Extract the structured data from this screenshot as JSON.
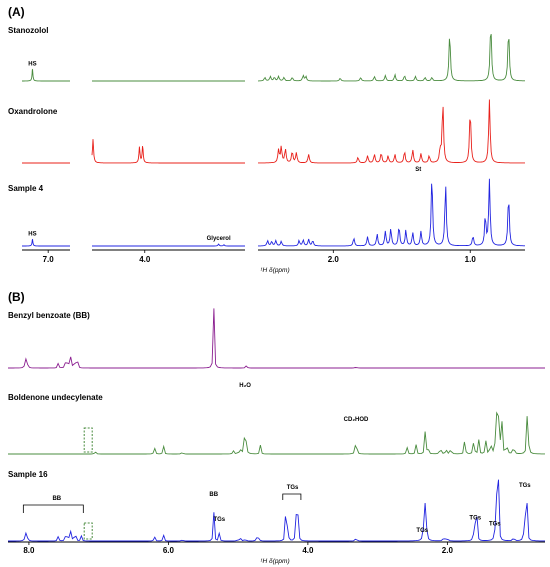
{
  "chart_data": [
    {
      "type": "line",
      "panel_label": "(A)",
      "x_label": "¹H δ(ppm)",
      "x_axis": "reversed",
      "x_ticks": [
        "7.0",
        "4.0",
        "2.0",
        "1.0"
      ],
      "x_segments": [
        [
          7.3,
          6.75
        ],
        [
          4.5,
          3.05
        ],
        [
          2.55,
          0.6
        ]
      ],
      "series": [
        {
          "name": "Stanozolol",
          "color": "#4a8c3f",
          "peaks": [
            [
              7.18,
              13
            ],
            [
              2.5,
              4
            ],
            [
              2.46,
              5
            ],
            [
              2.43,
              4
            ],
            [
              2.4,
              5
            ],
            [
              2.36,
              4
            ],
            [
              2.3,
              4
            ],
            [
              2.22,
              6
            ],
            [
              2.2,
              5
            ],
            [
              1.95,
              3
            ],
            [
              1.8,
              4
            ],
            [
              1.7,
              5
            ],
            [
              1.62,
              6
            ],
            [
              1.55,
              7
            ],
            [
              1.48,
              6
            ],
            [
              1.4,
              5
            ],
            [
              1.33,
              4
            ],
            [
              1.28,
              4
            ],
            [
              1.15,
              55
            ],
            [
              0.85,
              65
            ],
            [
              0.72,
              58
            ]
          ]
        },
        {
          "name": "Oxandrolone",
          "color": "#e8201a",
          "peaks": [
            [
              4.52,
              30
            ],
            [
              4.49,
              32
            ],
            [
              4.05,
              22
            ],
            [
              4.02,
              24
            ],
            [
              2.4,
              18
            ],
            [
              2.38,
              22
            ],
            [
              2.35,
              19
            ],
            [
              2.3,
              16
            ],
            [
              2.27,
              14
            ],
            [
              2.18,
              12
            ],
            [
              1.82,
              8
            ],
            [
              1.75,
              10
            ],
            [
              1.7,
              12
            ],
            [
              1.65,
              14
            ],
            [
              1.6,
              10
            ],
            [
              1.55,
              12
            ],
            [
              1.48,
              16
            ],
            [
              1.42,
              18
            ],
            [
              1.36,
              13
            ],
            [
              1.3,
              10
            ],
            [
              1.22,
              18
            ],
            [
              1.2,
              85
            ],
            [
              1.0,
              75
            ],
            [
              0.86,
              88
            ]
          ]
        },
        {
          "name": "Sample 4",
          "color": "#2124e0",
          "peaks": [
            [
              7.18,
              10
            ],
            [
              3.3,
              3
            ],
            [
              3.25,
              2
            ],
            [
              2.48,
              8
            ],
            [
              2.45,
              7
            ],
            [
              2.42,
              8
            ],
            [
              2.38,
              7
            ],
            [
              2.25,
              8
            ],
            [
              2.22,
              9
            ],
            [
              2.18,
              10
            ],
            [
              2.15,
              8
            ],
            [
              1.85,
              12
            ],
            [
              1.75,
              14
            ],
            [
              1.68,
              18
            ],
            [
              1.62,
              22
            ],
            [
              1.58,
              26
            ],
            [
              1.52,
              30
            ],
            [
              1.47,
              24
            ],
            [
              1.42,
              20
            ],
            [
              1.36,
              22
            ],
            [
              1.28,
              110
            ],
            [
              1.18,
              95
            ],
            [
              0.98,
              15
            ],
            [
              0.89,
              45
            ],
            [
              0.86,
              100
            ],
            [
              0.72,
              78
            ]
          ]
        }
      ],
      "annotations": [
        {
          "series": "Stanozolol",
          "x": 7.18,
          "text": "HS"
        },
        {
          "series": "Sample 4",
          "x": 7.18,
          "text": "HS"
        },
        {
          "series": "Sample 4",
          "x": 3.3,
          "text": "Glycerol"
        },
        {
          "series": "Sample 4",
          "x": 1.38,
          "text": "St"
        }
      ]
    },
    {
      "type": "line",
      "panel_label": "(B)",
      "x_label": "¹H δ(ppm)",
      "x_axis": "reversed",
      "x_ticks": [
        "8.0",
        "6.0",
        "4.0",
        "2.0"
      ],
      "x_range": [
        8.3,
        0.6
      ],
      "series": [
        {
          "name": "Benzyl benzoate (BB)",
          "color": "#8b1f90",
          "peaks": [
            [
              8.05,
              14
            ],
            [
              8.03,
              13
            ],
            [
              7.58,
              5
            ],
            [
              7.47,
              13
            ],
            [
              7.44,
              15
            ],
            [
              7.4,
              12
            ],
            [
              7.36,
              9
            ],
            [
              7.33,
              8
            ],
            [
              7.3,
              6
            ],
            [
              5.35,
              70
            ],
            [
              4.88,
              4
            ],
            [
              3.31,
              2
            ]
          ]
        },
        {
          "name": "Boldenone undecylenate",
          "color": "#4a8c3f",
          "peaks": [
            [
              7.05,
              4
            ],
            [
              6.2,
              8
            ],
            [
              6.07,
              9
            ],
            [
              5.8,
              3
            ],
            [
              5.07,
              4
            ],
            [
              5.0,
              4
            ],
            [
              4.96,
              4
            ],
            [
              4.9,
              62
            ],
            [
              4.68,
              9
            ],
            [
              3.31,
              28
            ],
            [
              2.58,
              8
            ],
            [
              2.45,
              10
            ],
            [
              2.32,
              22
            ],
            [
              2.28,
              14
            ],
            [
              2.1,
              12
            ],
            [
              2.02,
              8
            ],
            [
              1.95,
              10
            ],
            [
              1.75,
              18
            ],
            [
              1.62,
              20
            ],
            [
              1.55,
              14
            ],
            [
              1.45,
              15
            ],
            [
              1.38,
              20
            ],
            [
              1.3,
              75
            ],
            [
              1.26,
              70
            ],
            [
              1.22,
              40
            ],
            [
              1.15,
              18
            ],
            [
              1.05,
              15
            ],
            [
              0.85,
              72
            ]
          ]
        },
        {
          "name": "Sample 16",
          "color": "#2124e0",
          "peaks": [
            [
              8.05,
              20
            ],
            [
              8.03,
              18
            ],
            [
              7.58,
              8
            ],
            [
              7.47,
              18
            ],
            [
              7.44,
              20
            ],
            [
              7.4,
              17
            ],
            [
              7.36,
              14
            ],
            [
              7.33,
              12
            ],
            [
              7.25,
              10
            ],
            [
              6.2,
              10
            ],
            [
              6.07,
              12
            ],
            [
              5.8,
              4
            ],
            [
              5.35,
              55
            ],
            [
              5.27,
              14
            ],
            [
              5.0,
              6
            ],
            [
              4.96,
              5
            ],
            [
              4.9,
              6
            ],
            [
              4.72,
              24
            ],
            [
              4.32,
              45
            ],
            [
              4.29,
              42
            ],
            [
              4.17,
              50
            ],
            [
              4.14,
              48
            ],
            [
              3.31,
              10
            ],
            [
              2.33,
              110
            ],
            [
              2.31,
              100
            ],
            [
              2.05,
              15
            ],
            [
              2.0,
              10
            ],
            [
              1.61,
              70
            ],
            [
              1.58,
              60
            ],
            [
              1.3,
              150
            ],
            [
              1.27,
              120
            ],
            [
              1.05,
              12
            ],
            [
              0.89,
              85
            ],
            [
              0.86,
              80
            ]
          ]
        }
      ],
      "annotations": [
        {
          "series": "Boldenone undecylenate",
          "x": 4.9,
          "text": "H₂O"
        },
        {
          "series": "Boldenone undecylenate",
          "x": 3.31,
          "text": "CD₂HOD"
        },
        {
          "series": "Sample 16",
          "x": 5.35,
          "text": "BB"
        },
        {
          "series": "Sample 16",
          "x": 5.27,
          "text": "TGs"
        },
        {
          "series": "Sample 16",
          "x": 4.22,
          "text": "TGs"
        },
        {
          "series": "Sample 16",
          "x": 7.6,
          "text": "BB"
        },
        {
          "series": "Sample 16",
          "x": 2.36,
          "text": "TGs"
        },
        {
          "series": "Sample 16",
          "x": 1.6,
          "text": "TGs"
        },
        {
          "series": "Sample 16",
          "x": 1.32,
          "text": "TGs"
        },
        {
          "series": "Sample 16",
          "x": 0.89,
          "text": "TGs"
        }
      ]
    }
  ]
}
